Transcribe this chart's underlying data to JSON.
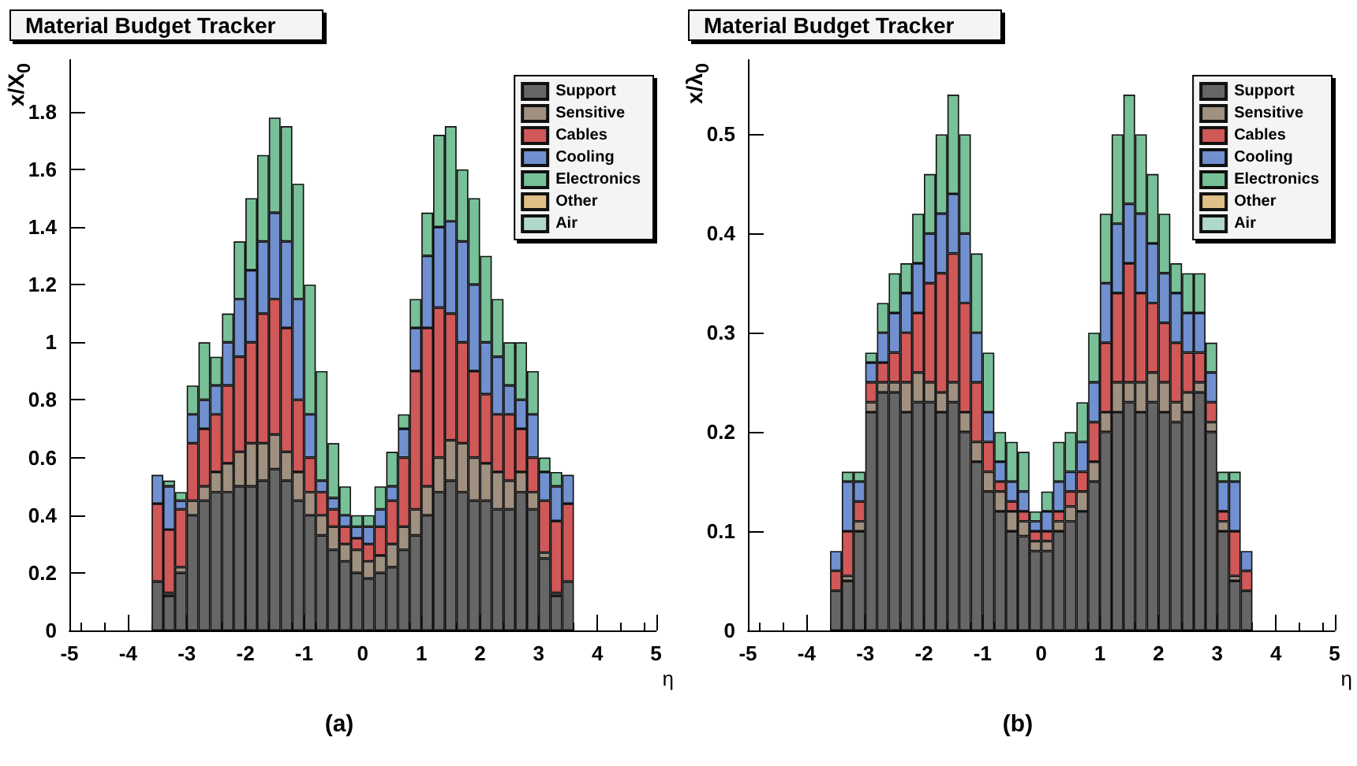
{
  "chart_data": [
    {
      "type": "bar",
      "title": "Material Budget Tracker",
      "xlabel": "η",
      "ylabel": "x/X$_{0}$",
      "stacked": true,
      "grid": false,
      "legend": "top right",
      "annotations": [
        "(a)"
      ],
      "xlim": [
        -5,
        5
      ],
      "xticks": [
        -5,
        -4,
        -3,
        -2,
        -1,
        0,
        1,
        2,
        3,
        4,
        5
      ],
      "ylim": [
        0,
        1.98
      ],
      "yticks": [
        0,
        0.2,
        0.4,
        0.6,
        0.8,
        1,
        1.2,
        1.4,
        1.6,
        1.8
      ],
      "x": [
        -3.5,
        -3.3,
        -3.1,
        -2.9,
        -2.7,
        -2.5,
        -2.3,
        -2.1,
        -1.9,
        -1.7,
        -1.5,
        -1.3,
        -1.1,
        -0.9,
        -0.7,
        -0.5,
        -0.3,
        -0.1,
        0.1,
        0.3,
        0.5,
        0.7,
        0.9,
        1.1,
        1.3,
        1.5,
        1.7,
        1.9,
        2.1,
        2.3,
        2.5,
        2.7,
        2.9,
        3.1,
        3.3,
        3.5
      ],
      "series": [
        {
          "name": "Support",
          "color": "#666666",
          "values": [
            0.17,
            0.12,
            0.2,
            0.4,
            0.45,
            0.48,
            0.48,
            0.5,
            0.5,
            0.52,
            0.56,
            0.52,
            0.45,
            0.4,
            0.33,
            0.28,
            0.24,
            0.2,
            0.18,
            0.2,
            0.22,
            0.28,
            0.33,
            0.4,
            0.48,
            0.52,
            0.48,
            0.45,
            0.45,
            0.42,
            0.42,
            0.48,
            0.42,
            0.25,
            0.12,
            0.17
          ]
        },
        {
          "name": "Sensitive",
          "color": "#a09080",
          "values": [
            null,
            0.01,
            0.02,
            0.05,
            0.05,
            0.07,
            0.1,
            0.12,
            0.15,
            0.13,
            0.12,
            0.1,
            0.1,
            0.08,
            0.07,
            0.08,
            0.06,
            0.08,
            0.06,
            0.06,
            0.08,
            0.08,
            0.09,
            0.1,
            0.12,
            0.14,
            0.17,
            0.15,
            0.13,
            0.13,
            0.1,
            0.07,
            0.06,
            0.02,
            0.01,
            null
          ]
        },
        {
          "name": "Cables",
          "color": "#d05858",
          "values": [
            0.27,
            0.22,
            0.2,
            0.2,
            0.2,
            0.2,
            0.27,
            0.33,
            0.35,
            0.45,
            0.47,
            0.43,
            0.25,
            0.12,
            0.08,
            0.06,
            0.06,
            0.04,
            0.06,
            0.1,
            0.15,
            0.24,
            0.48,
            0.55,
            0.52,
            0.44,
            0.35,
            0.3,
            0.24,
            0.2,
            0.23,
            0.15,
            0.12,
            0.18,
            0.25,
            0.27
          ]
        },
        {
          "name": "Cooling",
          "color": "#7090d0",
          "values": [
            0.1,
            0.15,
            0.03,
            0.1,
            0.1,
            0.1,
            0.15,
            0.2,
            0.25,
            0.25,
            0.3,
            0.3,
            0.35,
            0.15,
            0.04,
            0.04,
            0.04,
            0.04,
            0.06,
            0.06,
            0.05,
            0.1,
            0.15,
            0.25,
            0.28,
            0.32,
            0.35,
            0.3,
            0.18,
            0.2,
            0.1,
            0.1,
            0.15,
            0.1,
            0.12,
            0.1
          ]
        },
        {
          "name": "Electronics",
          "color": "#78c098",
          "values": [
            null,
            0.02,
            0.03,
            0.1,
            0.2,
            0.1,
            0.1,
            0.2,
            0.25,
            0.3,
            0.33,
            0.4,
            0.4,
            0.45,
            0.38,
            0.19,
            0.1,
            0.04,
            0.04,
            0.08,
            0.12,
            0.05,
            0.1,
            0.15,
            0.32,
            0.33,
            0.25,
            0.3,
            0.3,
            0.2,
            0.15,
            0.2,
            0.15,
            0.05,
            0.05,
            null
          ]
        },
        {
          "name": "Other",
          "color": "#e0c088",
          "values": [
            null,
            null,
            null,
            null,
            null,
            null,
            null,
            null,
            null,
            null,
            null,
            null,
            null,
            null,
            null,
            null,
            null,
            null,
            null,
            null,
            null,
            null,
            null,
            null,
            null,
            null,
            null,
            null,
            null,
            null,
            null,
            null,
            null,
            null,
            null,
            null
          ]
        },
        {
          "name": "Air",
          "color": "#b0d8c8",
          "values": [
            null,
            null,
            null,
            null,
            null,
            null,
            null,
            null,
            null,
            null,
            null,
            null,
            null,
            null,
            null,
            null,
            null,
            null,
            null,
            null,
            null,
            null,
            null,
            null,
            null,
            null,
            null,
            null,
            null,
            null,
            null,
            null,
            null,
            null,
            null,
            null
          ]
        }
      ]
    },
    {
      "type": "bar",
      "title": "Material Budget Tracker",
      "xlabel": "η",
      "ylabel": "x/λ$_{0}$",
      "stacked": true,
      "grid": false,
      "legend": "top right",
      "annotations": [
        "(b)"
      ],
      "xlim": [
        -5,
        5
      ],
      "xticks": [
        -5,
        -4,
        -3,
        -2,
        -1,
        0,
        1,
        2,
        3,
        4,
        5
      ],
      "ylim": [
        0,
        0.575
      ],
      "yticks": [
        0,
        0.1,
        0.2,
        0.3,
        0.4,
        0.5
      ],
      "x": [
        -3.5,
        -3.3,
        -3.1,
        -2.9,
        -2.7,
        -2.5,
        -2.3,
        -2.1,
        -1.9,
        -1.7,
        -1.5,
        -1.3,
        -1.1,
        -0.9,
        -0.7,
        -0.5,
        -0.3,
        -0.1,
        0.1,
        0.3,
        0.5,
        0.7,
        0.9,
        1.1,
        1.3,
        1.5,
        1.7,
        1.9,
        2.1,
        2.3,
        2.5,
        2.7,
        2.9,
        3.1,
        3.3,
        3.5
      ],
      "series": [
        {
          "name": "Support",
          "color": "#666666",
          "values": [
            0.04,
            0.05,
            0.1,
            0.22,
            0.24,
            0.24,
            0.22,
            0.23,
            0.23,
            0.22,
            0.23,
            0.2,
            0.17,
            0.14,
            0.12,
            0.1,
            0.095,
            0.08,
            0.08,
            0.1,
            0.11,
            0.12,
            0.15,
            0.2,
            0.22,
            0.23,
            0.22,
            0.23,
            0.22,
            0.21,
            0.22,
            0.24,
            0.2,
            0.1,
            0.05,
            0.04
          ]
        },
        {
          "name": "Sensitive",
          "color": "#a09080",
          "values": [
            null,
            0.005,
            0.01,
            0.01,
            0.01,
            0.01,
            0.03,
            0.03,
            0.02,
            0.02,
            0.02,
            0.02,
            0.02,
            0.02,
            0.02,
            0.02,
            0.015,
            0.01,
            0.01,
            0.01,
            0.015,
            0.02,
            0.02,
            0.02,
            0.03,
            0.02,
            0.03,
            0.03,
            0.03,
            0.02,
            0.02,
            0.01,
            0.01,
            0.01,
            0.005,
            null
          ]
        },
        {
          "name": "Cables",
          "color": "#d05858",
          "values": [
            0.02,
            0.045,
            0.02,
            0.02,
            0.02,
            0.03,
            0.05,
            0.06,
            0.1,
            0.12,
            0.13,
            0.11,
            0.06,
            0.03,
            0.01,
            0.01,
            0.01,
            0.01,
            0.01,
            0.01,
            0.015,
            0.02,
            0.04,
            0.07,
            0.09,
            0.12,
            0.09,
            0.07,
            0.06,
            0.06,
            0.04,
            0.03,
            0.02,
            0.01,
            0.045,
            0.02
          ]
        },
        {
          "name": "Cooling",
          "color": "#7090d0",
          "values": [
            0.02,
            0.05,
            0.02,
            0.02,
            0.03,
            0.04,
            0.04,
            0.05,
            0.05,
            0.06,
            0.06,
            0.07,
            0.05,
            0.03,
            0.02,
            0.02,
            0.02,
            0.01,
            0.02,
            0.03,
            0.02,
            0.03,
            0.04,
            0.06,
            0.07,
            0.06,
            0.08,
            0.06,
            0.05,
            0.05,
            0.04,
            0.04,
            0.03,
            0.03,
            0.05,
            0.02
          ]
        },
        {
          "name": "Electronics",
          "color": "#78c098",
          "values": [
            null,
            0.01,
            0.01,
            0.01,
            0.03,
            0.04,
            0.03,
            0.05,
            0.06,
            0.08,
            0.1,
            0.1,
            0.08,
            0.06,
            0.03,
            0.04,
            0.04,
            0.01,
            0.02,
            0.04,
            0.04,
            0.04,
            0.05,
            0.07,
            0.09,
            0.11,
            0.08,
            0.07,
            0.06,
            0.03,
            0.04,
            0.04,
            0.03,
            0.01,
            0.01,
            null
          ]
        },
        {
          "name": "Other",
          "color": "#e0c088",
          "values": [
            null,
            null,
            null,
            null,
            null,
            null,
            null,
            null,
            null,
            null,
            null,
            null,
            null,
            null,
            null,
            null,
            null,
            null,
            null,
            null,
            null,
            null,
            null,
            null,
            null,
            null,
            null,
            null,
            null,
            null,
            null,
            null,
            null,
            null,
            null,
            null
          ]
        },
        {
          "name": "Air",
          "color": "#b0d8c8",
          "values": [
            null,
            null,
            null,
            null,
            null,
            null,
            null,
            null,
            null,
            null,
            null,
            null,
            null,
            null,
            null,
            null,
            null,
            null,
            null,
            null,
            null,
            null,
            null,
            null,
            null,
            null,
            null,
            null,
            null,
            null,
            null,
            null,
            null,
            null,
            null,
            null
          ]
        }
      ]
    }
  ]
}
